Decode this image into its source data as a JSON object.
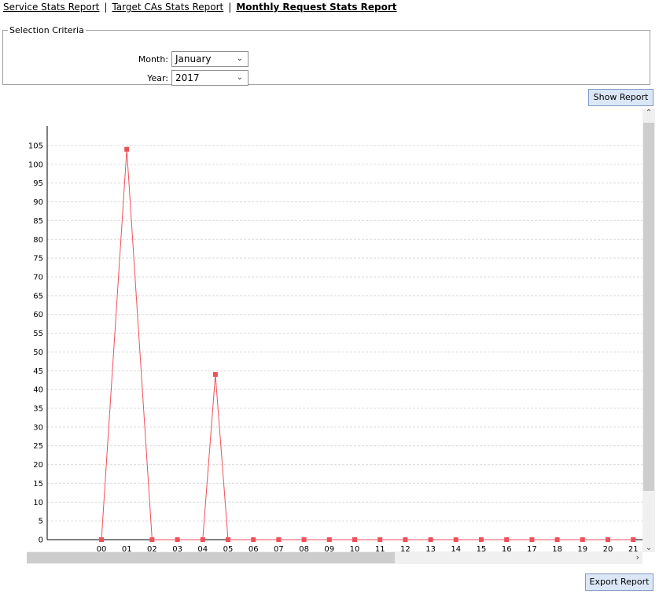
{
  "nav": {
    "links": [
      {
        "label": "Service Stats Report"
      },
      {
        "label": "Target CAs Stats Report"
      },
      {
        "label": "Monthly Request Stats Report"
      }
    ],
    "separator": "|"
  },
  "criteria": {
    "legend": "Selection Criteria",
    "month_label": "Month:",
    "month_value": "January",
    "year_label": "Year:",
    "year_value": "2017"
  },
  "buttons": {
    "show_report": "Show Report",
    "export_report": "Export Report"
  },
  "colors": {
    "series": "#f0505a",
    "grid": "#dcdcdc"
  },
  "chart_data": {
    "type": "line",
    "title": "",
    "xlabel": "",
    "ylabel": "",
    "ylim": [
      0,
      105
    ],
    "yticks": [
      0,
      5,
      10,
      15,
      20,
      25,
      30,
      35,
      40,
      45,
      50,
      55,
      60,
      65,
      70,
      75,
      80,
      85,
      90,
      95,
      100,
      105
    ],
    "x_tick_labels": [
      "00",
      "01",
      "02",
      "03",
      "04",
      "05",
      "06",
      "07",
      "08",
      "09",
      "10",
      "11",
      "12",
      "13",
      "14",
      "15",
      "16",
      "17",
      "18",
      "19",
      "20",
      "21"
    ],
    "points": [
      {
        "x": 0,
        "y": 0
      },
      {
        "x": 1,
        "y": 104
      },
      {
        "x": 2,
        "y": 0
      },
      {
        "x": 3,
        "y": 0
      },
      {
        "x": 4,
        "y": 0
      },
      {
        "x": 4.5,
        "y": 44
      },
      {
        "x": 5,
        "y": 0
      },
      {
        "x": 6,
        "y": 0
      },
      {
        "x": 7,
        "y": 0
      },
      {
        "x": 8,
        "y": 0
      },
      {
        "x": 9,
        "y": 0
      },
      {
        "x": 10,
        "y": 0
      },
      {
        "x": 11,
        "y": 0
      },
      {
        "x": 12,
        "y": 0
      },
      {
        "x": 13,
        "y": 0
      },
      {
        "x": 14,
        "y": 0
      },
      {
        "x": 15,
        "y": 0
      },
      {
        "x": 16,
        "y": 0
      },
      {
        "x": 17,
        "y": 0
      },
      {
        "x": 18,
        "y": 0
      },
      {
        "x": 19,
        "y": 0
      },
      {
        "x": 20,
        "y": 0
      },
      {
        "x": 21,
        "y": 0
      }
    ],
    "grid": true
  }
}
